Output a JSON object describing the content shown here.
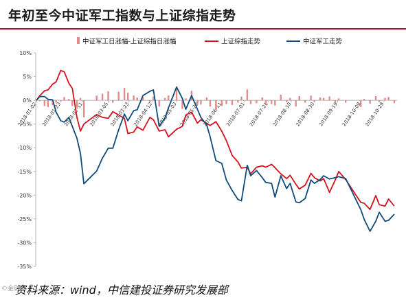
{
  "title": "年初至今中证军工指数与上证综指走势",
  "source": "资料来源：wind，中信建投证券研究发展部",
  "watermark": "©金融界",
  "colors": {
    "diff": "#e58a8a",
    "shanghai": "#d6101c",
    "military": "#0f4a7a",
    "title_rule": "#b0122a"
  },
  "chart_data": {
    "type": "line",
    "legend_position": "top",
    "grid": false,
    "ylim": [
      -35,
      10
    ],
    "yticks": [
      10,
      5,
      0,
      -5,
      -10,
      -15,
      -20,
      -25,
      -30,
      -35
    ],
    "ytick_labels": [
      "10%",
      "5%",
      "0%",
      "-5%",
      "-10%",
      "-15%",
      "-20%",
      "-25%",
      "-30%",
      "-35%"
    ],
    "xticks": [
      "2018-01-02",
      "2018-01-23",
      "2018-02-11",
      "2018-03-05",
      "2018-03-23",
      "2018-04-12",
      "2018-05-03",
      "2018-05-22",
      "2018-06-11",
      "2018-07-01",
      "2018-07-21",
      "2018-08-10",
      "2018-08-30",
      "2018-09-19",
      "2018-10-09",
      "2018-10-29"
    ],
    "x": [
      "2018-01-02",
      "2018-01-05",
      "2018-01-09",
      "2018-01-12",
      "2018-01-16",
      "2018-01-19",
      "2018-01-23",
      "2018-01-26",
      "2018-01-30",
      "2018-02-02",
      "2018-02-06",
      "2018-02-09",
      "2018-02-12",
      "2018-02-23",
      "2018-02-28",
      "2018-03-05",
      "2018-03-09",
      "2018-03-14",
      "2018-03-19",
      "2018-03-22",
      "2018-03-27",
      "2018-03-30",
      "2018-04-04",
      "2018-04-10",
      "2018-04-13",
      "2018-04-18",
      "2018-04-23",
      "2018-04-26",
      "2018-05-03",
      "2018-05-08",
      "2018-05-11",
      "2018-05-16",
      "2018-05-21",
      "2018-05-24",
      "2018-05-29",
      "2018-06-01",
      "2018-06-06",
      "2018-06-11",
      "2018-06-15",
      "2018-06-20",
      "2018-06-25",
      "2018-06-28",
      "2018-07-03",
      "2018-07-06",
      "2018-07-11",
      "2018-07-16",
      "2018-07-19",
      "2018-07-24",
      "2018-07-27",
      "2018-08-01",
      "2018-08-06",
      "2018-08-09",
      "2018-08-14",
      "2018-08-17",
      "2018-08-22",
      "2018-08-27",
      "2018-08-30",
      "2018-09-04",
      "2018-09-07",
      "2018-09-12",
      "2018-09-17",
      "2018-09-20",
      "2018-09-26",
      "2018-10-09",
      "2018-10-12",
      "2018-10-17",
      "2018-10-22",
      "2018-10-25",
      "2018-10-30",
      "2018-11-02",
      "2018-11-07"
    ],
    "series": [
      {
        "name": "上证综指走势",
        "values": [
          0,
          1.0,
          2.0,
          2.2,
          3.4,
          3.9,
          6.3,
          6.0,
          3.6,
          2.5,
          -3.6,
          -6.5,
          -5.0,
          -3.0,
          -3.6,
          -3.8,
          -2.4,
          -3.1,
          -3.8,
          -7.0,
          -6.7,
          -5.6,
          -6.3,
          -3.6,
          -4.1,
          -6.5,
          -6.2,
          -7.7,
          -6.1,
          -5.5,
          -3.1,
          -2.5,
          -4.8,
          -4.1,
          -4.9,
          -5.3,
          -4.5,
          -6.5,
          -8.5,
          -11.6,
          -13.0,
          -14.3,
          -14.1,
          -15.5,
          -14.1,
          -13.8,
          -14.1,
          -13.5,
          -14.2,
          -15.5,
          -16.5,
          -15.8,
          -17.7,
          -18.7,
          -17.9,
          -15.4,
          -16.3,
          -17.0,
          -16.5,
          -19.4,
          -16.8,
          -15.0,
          -16.7,
          -21.5,
          -21.7,
          -23.0,
          -20.1,
          -22.0,
          -22.3,
          -20.8,
          -22.3
        ]
      },
      {
        "name": "中证军工走势",
        "values": [
          0,
          0.8,
          0.8,
          0.2,
          0.1,
          -2.5,
          -4.3,
          -4.6,
          -3.6,
          -5.5,
          -8.0,
          -11.2,
          -17.6,
          -14.9,
          -12.2,
          -10.1,
          -10.1,
          -6.2,
          -2.9,
          -4.3,
          -2.2,
          -2.0,
          1.0,
          1.9,
          2.2,
          -5.5,
          -3.7,
          -1.6,
          2.8,
          0.4,
          -1.9,
          1.0,
          -1.9,
          -3.6,
          -5.2,
          -7.7,
          -12.7,
          -13.3,
          -16.8,
          -19.0,
          -20.9,
          -21.2,
          -13.7,
          -15.9,
          -14.8,
          -16.3,
          -17.3,
          -17.5,
          -20.4,
          -15.9,
          -18.6,
          -17.5,
          -21.4,
          -21.6,
          -20.7,
          -16.8,
          -17.5,
          -16.7,
          -15.9,
          -16.6,
          -16.3,
          -16.1,
          -16.5,
          -23.0,
          -25.1,
          -27.6,
          -25.5,
          -23.6,
          -25.5,
          -25.3,
          -24.0
        ]
      },
      {
        "name": "中证军工日涨幅-上证综指日涨幅",
        "values": [
          0,
          -0.2,
          -1.2,
          -1.4,
          -1.0,
          -0.5,
          -0.2,
          0.7,
          0.3,
          -1.2,
          -1.5,
          0.5,
          -3.6,
          1.0,
          1.4,
          1.9,
          -0.5,
          1.8,
          2.6,
          1.6,
          1.0,
          0.6,
          0.7,
          -0.4,
          0.8,
          -1.3,
          0.5,
          1.0,
          2.9,
          -1.8,
          0.4,
          2.0,
          -0.8,
          -0.9,
          0.6,
          -1.3,
          -2.1,
          -1.2,
          -0.8,
          -1.0,
          -0.5,
          0.8,
          2.3,
          -0.8,
          -0.6,
          0.6,
          -1.0,
          -0.8,
          -1.1,
          1.2,
          -0.4,
          0.5,
          -1.3,
          0.9,
          -0.5,
          1.0,
          -0.4,
          0.6,
          0.5,
          0.8,
          -0.6,
          0.4,
          -0.5,
          -1.4,
          0.3,
          -0.7,
          0.9,
          -0.4,
          0.5,
          0.7,
          -0.6
        ]
      }
    ]
  }
}
